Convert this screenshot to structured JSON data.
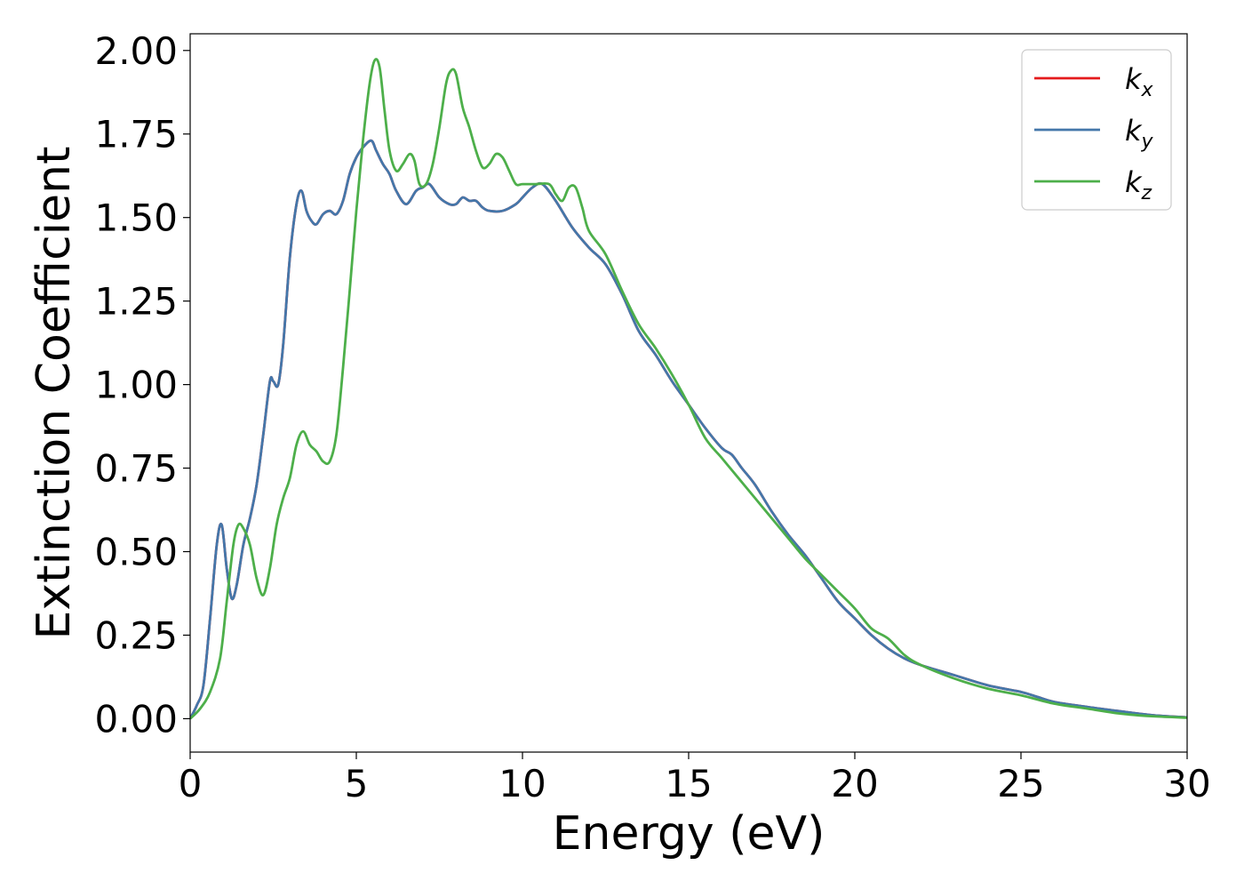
{
  "chart_data": {
    "type": "line",
    "xlabel": "Energy (eV)",
    "ylabel": "Extinction Coefficient",
    "xlim": [
      0,
      30
    ],
    "ylim": [
      -0.1,
      2.05
    ],
    "xticks": [
      "0",
      "5",
      "10",
      "15",
      "20",
      "25",
      "30"
    ],
    "yticks": [
      "0.00",
      "0.25",
      "0.50",
      "0.75",
      "1.00",
      "1.25",
      "1.50",
      "1.75",
      "2.00"
    ],
    "grid": false,
    "legend_position": "top-right",
    "series": [
      {
        "name": "k",
        "subscript": "x",
        "color": "#e41a1c",
        "x": [
          0,
          0.2,
          0.4,
          0.6,
          0.8,
          0.95,
          1.1,
          1.25,
          1.4,
          1.6,
          1.8,
          2.0,
          2.2,
          2.4,
          2.5,
          2.65,
          2.8,
          3.0,
          3.2,
          3.35,
          3.5,
          3.65,
          3.8,
          4.0,
          4.2,
          4.4,
          4.6,
          4.8,
          5.0,
          5.2,
          5.45,
          5.6,
          5.8,
          6.0,
          6.2,
          6.5,
          6.8,
          7.0,
          7.2,
          7.5,
          7.8,
          8.0,
          8.2,
          8.4,
          8.6,
          8.8,
          9.0,
          9.4,
          9.8,
          10.0,
          10.3,
          10.6,
          11.0,
          11.5,
          12.0,
          12.5,
          13.0,
          13.5,
          14.0,
          14.5,
          15.0,
          15.5,
          16.0,
          16.3,
          16.6,
          17.0,
          17.5,
          18.0,
          18.5,
          19.0,
          19.5,
          20.0,
          20.5,
          21.0,
          21.5,
          22.0,
          23.0,
          24.0,
          25.0,
          25.5,
          26.0,
          27.0,
          28.0,
          29.0,
          30.0
        ],
        "values": [
          0.0,
          0.04,
          0.1,
          0.3,
          0.52,
          0.58,
          0.45,
          0.36,
          0.4,
          0.52,
          0.6,
          0.7,
          0.85,
          1.01,
          1.01,
          1.0,
          1.12,
          1.38,
          1.54,
          1.58,
          1.52,
          1.49,
          1.48,
          1.51,
          1.52,
          1.51,
          1.55,
          1.63,
          1.68,
          1.71,
          1.73,
          1.7,
          1.66,
          1.63,
          1.58,
          1.54,
          1.58,
          1.59,
          1.6,
          1.56,
          1.54,
          1.54,
          1.56,
          1.55,
          1.55,
          1.53,
          1.52,
          1.52,
          1.54,
          1.56,
          1.59,
          1.6,
          1.55,
          1.47,
          1.41,
          1.36,
          1.27,
          1.16,
          1.09,
          1.01,
          0.94,
          0.87,
          0.81,
          0.79,
          0.75,
          0.7,
          0.62,
          0.55,
          0.49,
          0.42,
          0.35,
          0.3,
          0.25,
          0.21,
          0.18,
          0.16,
          0.13,
          0.1,
          0.08,
          0.065,
          0.05,
          0.035,
          0.022,
          0.01,
          0.004
        ]
      },
      {
        "name": "k",
        "subscript": "y",
        "color": "#4477aa",
        "x": [
          0,
          0.2,
          0.4,
          0.6,
          0.8,
          0.95,
          1.1,
          1.25,
          1.4,
          1.6,
          1.8,
          2.0,
          2.2,
          2.4,
          2.5,
          2.65,
          2.8,
          3.0,
          3.2,
          3.35,
          3.5,
          3.65,
          3.8,
          4.0,
          4.2,
          4.4,
          4.6,
          4.8,
          5.0,
          5.2,
          5.45,
          5.6,
          5.8,
          6.0,
          6.2,
          6.5,
          6.8,
          7.0,
          7.2,
          7.5,
          7.8,
          8.0,
          8.2,
          8.4,
          8.6,
          8.8,
          9.0,
          9.4,
          9.8,
          10.0,
          10.3,
          10.6,
          11.0,
          11.5,
          12.0,
          12.5,
          13.0,
          13.5,
          14.0,
          14.5,
          15.0,
          15.5,
          16.0,
          16.3,
          16.6,
          17.0,
          17.5,
          18.0,
          18.5,
          19.0,
          19.5,
          20.0,
          20.5,
          21.0,
          21.5,
          22.0,
          23.0,
          24.0,
          25.0,
          25.5,
          26.0,
          27.0,
          28.0,
          29.0,
          30.0
        ],
        "values": [
          0.0,
          0.04,
          0.1,
          0.3,
          0.52,
          0.58,
          0.45,
          0.36,
          0.4,
          0.52,
          0.6,
          0.7,
          0.85,
          1.01,
          1.01,
          1.0,
          1.12,
          1.38,
          1.54,
          1.58,
          1.52,
          1.49,
          1.48,
          1.51,
          1.52,
          1.51,
          1.55,
          1.63,
          1.68,
          1.71,
          1.73,
          1.7,
          1.66,
          1.63,
          1.58,
          1.54,
          1.58,
          1.59,
          1.6,
          1.56,
          1.54,
          1.54,
          1.56,
          1.55,
          1.55,
          1.53,
          1.52,
          1.52,
          1.54,
          1.56,
          1.59,
          1.6,
          1.55,
          1.47,
          1.41,
          1.36,
          1.27,
          1.16,
          1.09,
          1.01,
          0.94,
          0.87,
          0.81,
          0.79,
          0.75,
          0.7,
          0.62,
          0.55,
          0.49,
          0.42,
          0.35,
          0.3,
          0.25,
          0.21,
          0.18,
          0.16,
          0.13,
          0.1,
          0.08,
          0.065,
          0.05,
          0.035,
          0.022,
          0.01,
          0.004
        ]
      },
      {
        "name": "k",
        "subscript": "z",
        "color": "#4daf4a",
        "x": [
          0,
          0.3,
          0.6,
          0.9,
          1.1,
          1.3,
          1.45,
          1.6,
          1.8,
          2.0,
          2.2,
          2.4,
          2.6,
          2.8,
          3.0,
          3.2,
          3.4,
          3.6,
          3.8,
          4.0,
          4.2,
          4.4,
          4.6,
          4.8,
          5.0,
          5.2,
          5.4,
          5.55,
          5.7,
          5.85,
          6.0,
          6.2,
          6.4,
          6.6,
          6.75,
          6.9,
          7.1,
          7.3,
          7.5,
          7.7,
          7.85,
          8.0,
          8.2,
          8.4,
          8.6,
          8.8,
          9.0,
          9.2,
          9.4,
          9.6,
          9.8,
          10.0,
          10.4,
          10.8,
          11.0,
          11.2,
          11.4,
          11.6,
          11.8,
          12.0,
          12.5,
          13.0,
          13.5,
          14.0,
          14.5,
          15.0,
          15.5,
          16.0,
          16.5,
          17.0,
          17.5,
          18.0,
          18.5,
          19.0,
          19.5,
          20.0,
          20.5,
          21.0,
          21.5,
          22.0,
          23.0,
          24.0,
          25.0,
          26.0,
          27.0,
          28.0,
          29.0,
          30.0
        ],
        "values": [
          0.0,
          0.03,
          0.08,
          0.18,
          0.35,
          0.52,
          0.58,
          0.57,
          0.52,
          0.42,
          0.37,
          0.45,
          0.58,
          0.66,
          0.72,
          0.82,
          0.86,
          0.82,
          0.8,
          0.77,
          0.77,
          0.85,
          1.05,
          1.28,
          1.52,
          1.73,
          1.9,
          1.97,
          1.95,
          1.82,
          1.7,
          1.64,
          1.66,
          1.69,
          1.67,
          1.6,
          1.6,
          1.66,
          1.77,
          1.9,
          1.94,
          1.93,
          1.83,
          1.77,
          1.7,
          1.65,
          1.66,
          1.69,
          1.68,
          1.64,
          1.6,
          1.6,
          1.6,
          1.6,
          1.57,
          1.55,
          1.59,
          1.59,
          1.53,
          1.46,
          1.39,
          1.28,
          1.18,
          1.11,
          1.03,
          0.94,
          0.84,
          0.78,
          0.72,
          0.66,
          0.6,
          0.54,
          0.48,
          0.43,
          0.38,
          0.33,
          0.27,
          0.24,
          0.19,
          0.16,
          0.12,
          0.09,
          0.07,
          0.045,
          0.03,
          0.015,
          0.007,
          0.003
        ]
      }
    ]
  }
}
